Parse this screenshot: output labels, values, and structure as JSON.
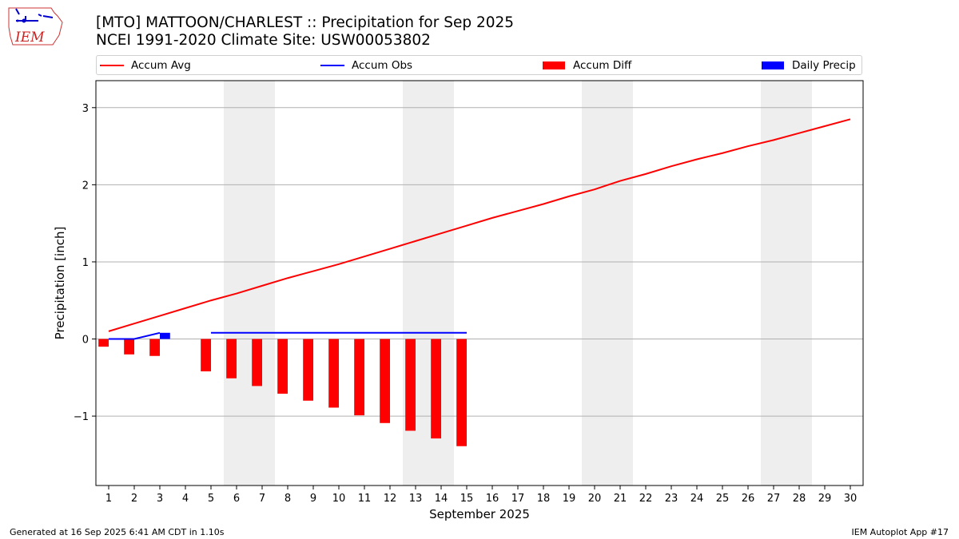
{
  "header": {
    "title": "[MTO] MATTOON/CHARLEST :: Precipitation for Sep 2025",
    "subtitle": "NCEI 1991-2020 Climate Site: USW00053802"
  },
  "logo": {
    "text": "IEM",
    "icon": "iem-iowa-logo"
  },
  "legend": [
    {
      "label": "Accum Avg",
      "kind": "line",
      "color": "#ff0000"
    },
    {
      "label": "Accum Obs",
      "kind": "line",
      "color": "#0000ff"
    },
    {
      "label": "Accum Diff",
      "kind": "box",
      "color": "#ff0000"
    },
    {
      "label": "Daily Precip",
      "kind": "box",
      "color": "#0000ff"
    }
  ],
  "footer": {
    "left": "Generated at 16 Sep 2025 6:41 AM CDT in 1.10s",
    "right": "IEM Autoplot App #17"
  },
  "chart_data": {
    "type": "bar",
    "xlabel": "September 2025",
    "ylabel": "Precipitation [inch]",
    "xlim": [
      0.5,
      30.5
    ],
    "ylim": [
      -1.9,
      3.35
    ],
    "x_ticks": [
      1,
      2,
      3,
      4,
      5,
      6,
      7,
      8,
      9,
      10,
      11,
      12,
      13,
      14,
      15,
      16,
      17,
      18,
      19,
      20,
      21,
      22,
      23,
      24,
      25,
      26,
      27,
      28,
      29,
      30
    ],
    "y_ticks": [
      {
        "value": -1,
        "label": "−1"
      },
      {
        "value": 0,
        "label": "0"
      },
      {
        "value": 1,
        "label": "1"
      },
      {
        "value": 2,
        "label": "2"
      },
      {
        "value": 3,
        "label": "3"
      }
    ],
    "grid": "horizontal",
    "weekend_shading": [
      [
        5.5,
        7.5
      ],
      [
        12.5,
        14.5
      ],
      [
        19.5,
        21.5
      ],
      [
        26.5,
        28.5
      ]
    ],
    "series": [
      {
        "name": "Accum Avg",
        "type": "line",
        "color": "#ff0000",
        "x": [
          1,
          2,
          3,
          4,
          5,
          6,
          7,
          8,
          9,
          10,
          11,
          12,
          13,
          14,
          15,
          16,
          17,
          18,
          19,
          20,
          21,
          22,
          23,
          24,
          25,
          26,
          27,
          28,
          29,
          30
        ],
        "values": [
          0.1,
          0.2,
          0.3,
          0.4,
          0.5,
          0.59,
          0.69,
          0.79,
          0.88,
          0.97,
          1.07,
          1.17,
          1.27,
          1.37,
          1.47,
          1.57,
          1.66,
          1.75,
          1.85,
          1.94,
          2.05,
          2.14,
          2.24,
          2.33,
          2.41,
          2.5,
          2.58,
          2.67,
          2.76,
          2.85
        ]
      },
      {
        "name": "Accum Obs",
        "type": "line",
        "color": "#0000ff",
        "segments": [
          {
            "x": [
              1,
              2,
              3
            ],
            "values": [
              0,
              0,
              0.08
            ]
          },
          {
            "x": [
              5,
              6,
              7,
              8,
              9,
              10,
              11,
              12,
              13,
              14,
              15
            ],
            "values": [
              0.08,
              0.08,
              0.08,
              0.08,
              0.08,
              0.08,
              0.08,
              0.08,
              0.08,
              0.08,
              0.08
            ]
          }
        ]
      },
      {
        "name": "Accum Diff",
        "type": "bar",
        "color": "#ff0000",
        "x": [
          1,
          2,
          3,
          5,
          6,
          7,
          8,
          9,
          10,
          11,
          12,
          13,
          14,
          15
        ],
        "values": [
          -0.1,
          -0.2,
          -0.22,
          -0.42,
          -0.51,
          -0.61,
          -0.71,
          -0.8,
          -0.89,
          -0.99,
          -1.09,
          -1.19,
          -1.29,
          -1.39
        ]
      },
      {
        "name": "Daily Precip",
        "type": "bar",
        "color": "#0000ff",
        "x": [
          3
        ],
        "values": [
          0.08
        ]
      }
    ]
  }
}
